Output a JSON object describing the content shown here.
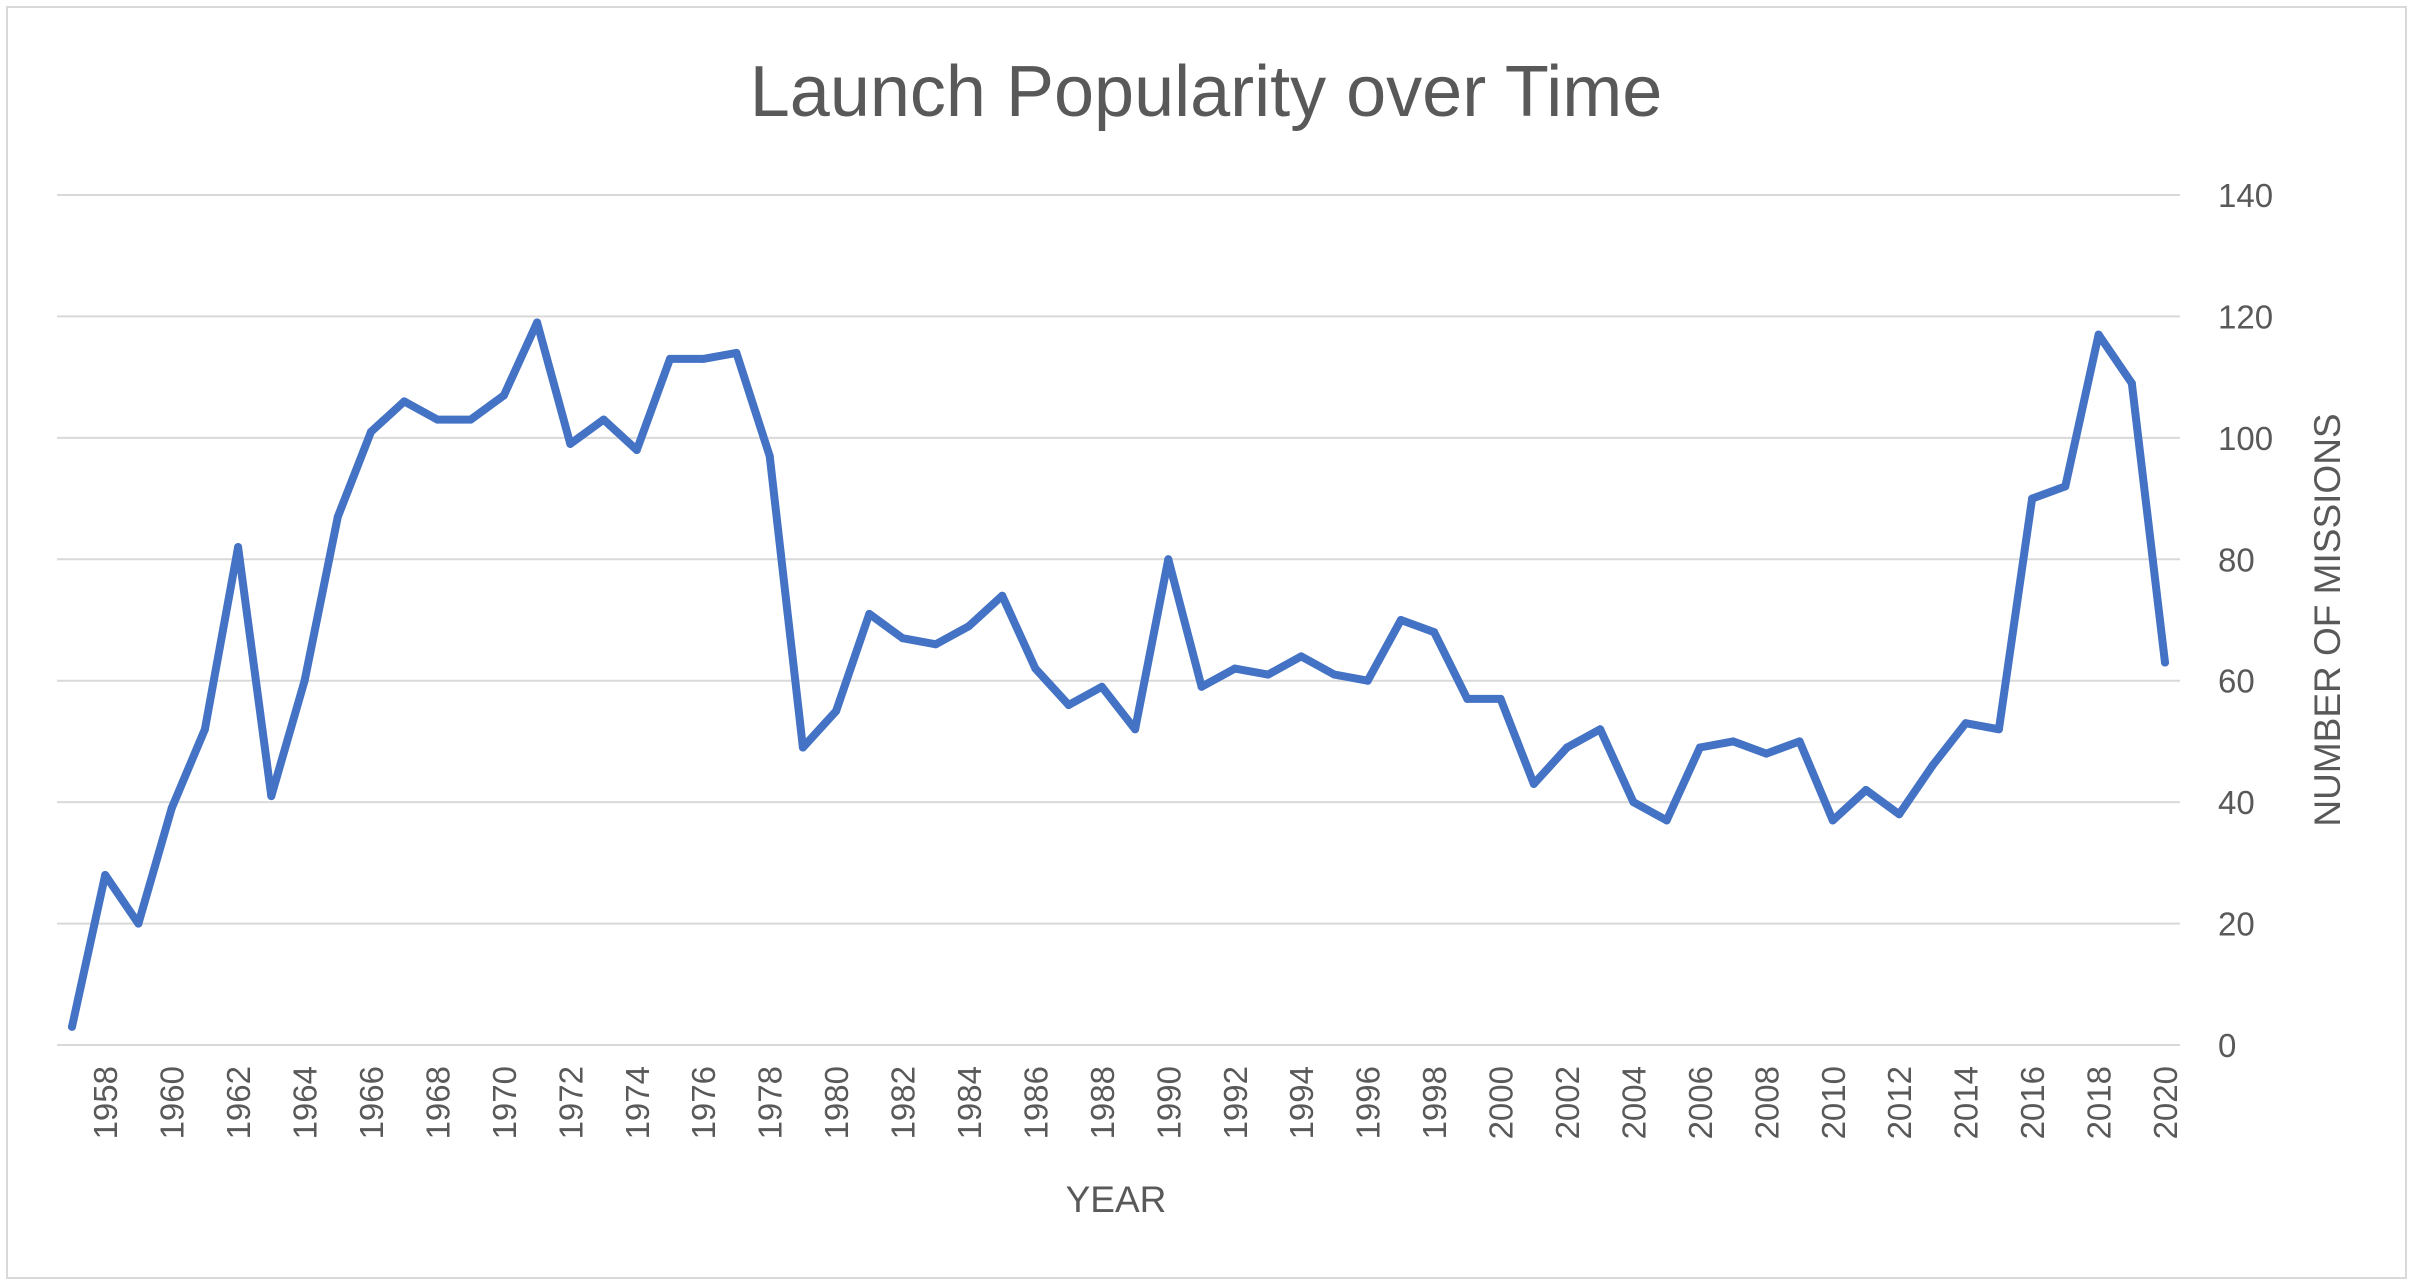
{
  "chart_data": {
    "type": "line",
    "title": "Launch Popularity over Time",
    "xlabel": "YEAR",
    "ylabel": "NUMBER OF MISSIONS",
    "ylim": [
      0,
      140
    ],
    "yticks": [
      0,
      20,
      40,
      60,
      80,
      100,
      120,
      140
    ],
    "y_axis_side": "right",
    "grid": "horizontal",
    "legend": "none",
    "x_tick_labels": [
      "1958",
      "1960",
      "1962",
      "1964",
      "1966",
      "1968",
      "1970",
      "1972",
      "1974",
      "1976",
      "1978",
      "1980",
      "1982",
      "1984",
      "1986",
      "1988",
      "1990",
      "1992",
      "1994",
      "1996",
      "1998",
      "2000",
      "2002",
      "2004",
      "2006",
      "2008",
      "2010",
      "2012",
      "2014",
      "2016",
      "2018",
      "2020"
    ],
    "x": [
      1957,
      1958,
      1959,
      1960,
      1961,
      1962,
      1963,
      1964,
      1965,
      1966,
      1967,
      1968,
      1969,
      1970,
      1971,
      1972,
      1973,
      1974,
      1975,
      1976,
      1977,
      1978,
      1979,
      1980,
      1981,
      1982,
      1983,
      1984,
      1985,
      1986,
      1987,
      1988,
      1989,
      1990,
      1991,
      1992,
      1993,
      1994,
      1995,
      1996,
      1997,
      1998,
      1999,
      2000,
      2001,
      2002,
      2003,
      2004,
      2005,
      2006,
      2007,
      2008,
      2009,
      2010,
      2011,
      2012,
      2013,
      2014,
      2015,
      2016,
      2017,
      2018,
      2019,
      2020
    ],
    "series": [
      {
        "color": "#4472c4",
        "values": [
          3,
          28,
          20,
          39,
          52,
          82,
          41,
          60,
          87,
          101,
          106,
          103,
          103,
          107,
          119,
          99,
          103,
          98,
          113,
          113,
          114,
          97,
          49,
          55,
          71,
          67,
          66,
          69,
          74,
          62,
          56,
          59,
          52,
          80,
          59,
          62,
          61,
          64,
          61,
          60,
          70,
          68,
          57,
          57,
          43,
          49,
          52,
          40,
          37,
          49,
          50,
          48,
          50,
          37,
          42,
          38,
          46,
          53,
          52,
          90,
          92,
          117,
          109,
          63
        ]
      }
    ]
  }
}
